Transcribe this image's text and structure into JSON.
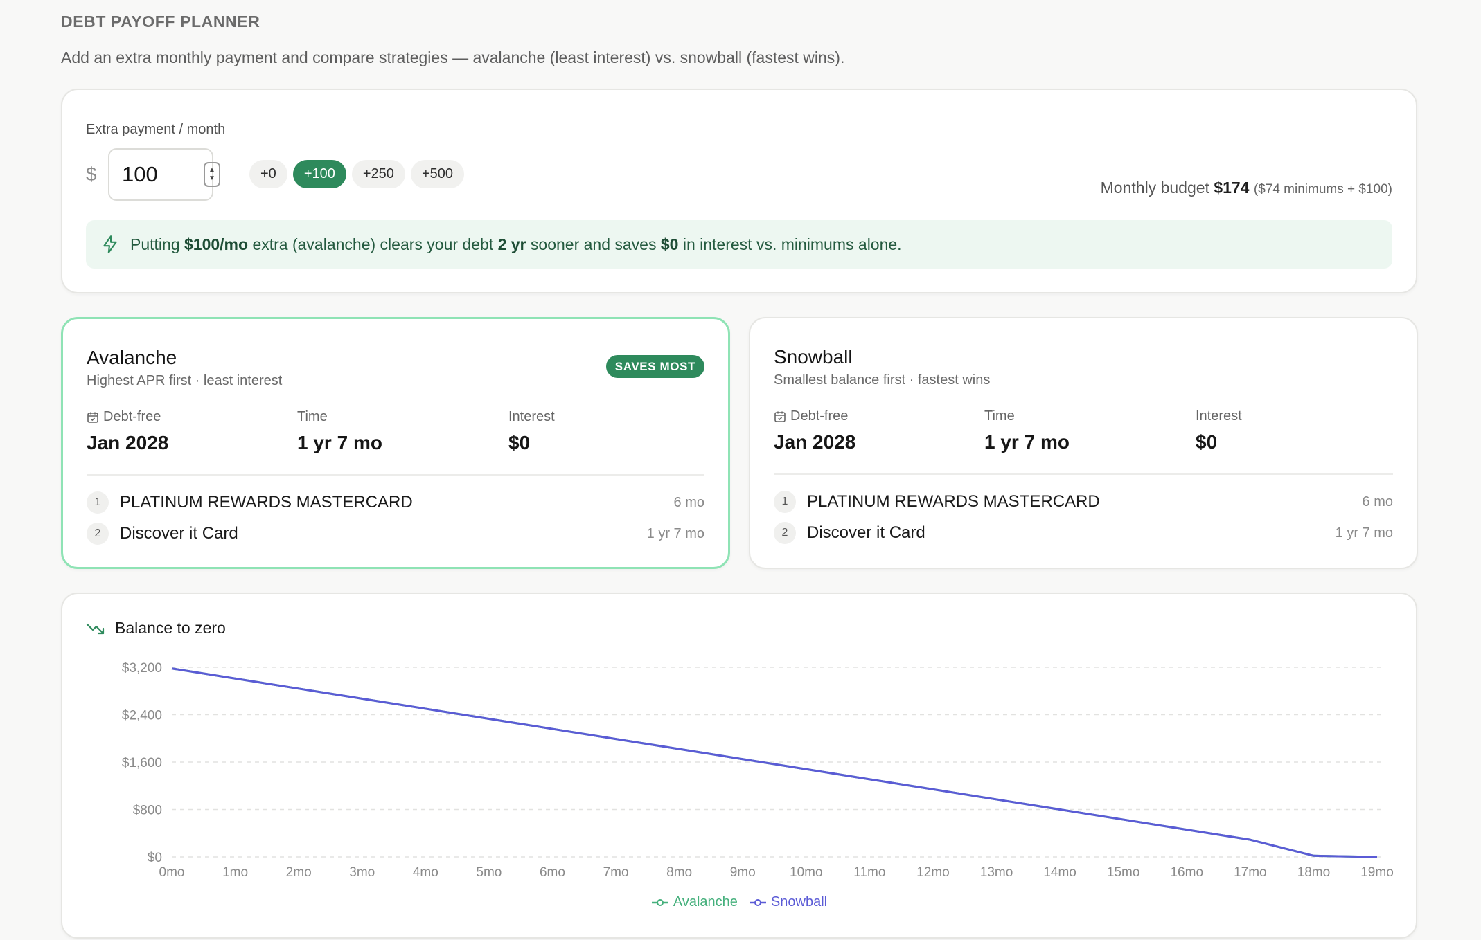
{
  "header": {
    "title": "DEBT PAYOFF PLANNER",
    "subtitle": "Add an extra monthly payment and compare strategies — avalanche (least interest) vs. snowball (fastest wins)."
  },
  "payment": {
    "label": "Extra payment / month",
    "currency": "$",
    "value": "100",
    "chips": [
      "+0",
      "+100",
      "+250",
      "+500"
    ],
    "active_chip": "+100",
    "budget_label": "Monthly budget",
    "budget_value": "$174",
    "budget_detail": "($74 minimums + $100)",
    "banner": {
      "icon": "lightning-icon",
      "t1": "Putting ",
      "b1": "$100/mo",
      "t2": " extra (avalanche) clears your debt ",
      "b2": "2 yr",
      "t3": " sooner and saves ",
      "b3": "$0",
      "t4": " in interest vs. minimums alone."
    }
  },
  "strategies": [
    {
      "name": "Avalanche",
      "desc": "Highest APR first · least interest",
      "badge": "SAVES MOST",
      "debt_free_label": "Debt-free",
      "debt_free": "Jan 2028",
      "time_label": "Time",
      "time": "1 yr 7 mo",
      "interest_label": "Interest",
      "interest": "$0",
      "debts": [
        {
          "n": "1",
          "name": "PLATINUM REWARDS MASTERCARD",
          "time": "6 mo"
        },
        {
          "n": "2",
          "name": "Discover it Card",
          "time": "1 yr 7 mo"
        }
      ]
    },
    {
      "name": "Snowball",
      "desc": "Smallest balance first · fastest wins",
      "debt_free_label": "Debt-free",
      "debt_free": "Jan 2028",
      "time_label": "Time",
      "time": "1 yr 7 mo",
      "interest_label": "Interest",
      "interest": "$0",
      "debts": [
        {
          "n": "1",
          "name": "PLATINUM REWARDS MASTERCARD",
          "time": "6 mo"
        },
        {
          "n": "2",
          "name": "Discover it Card",
          "time": "1 yr 7 mo"
        }
      ]
    }
  ],
  "colors": {
    "accent": "#2e8a5c",
    "avalanche": "#45b07c",
    "snowball": "#5b5bd6"
  },
  "chart_data": {
    "type": "line",
    "title": "Balance to zero",
    "x": [
      "0mo",
      "1mo",
      "2mo",
      "3mo",
      "4mo",
      "5mo",
      "6mo",
      "7mo",
      "8mo",
      "9mo",
      "10mo",
      "11mo",
      "12mo",
      "13mo",
      "14mo",
      "15mo",
      "16mo",
      "17mo",
      "18mo",
      "19mo"
    ],
    "yticks": [
      "$0",
      "$800",
      "$1,600",
      "$2,400",
      "$3,200"
    ],
    "ytick_values": [
      0,
      800,
      1600,
      2400,
      3200
    ],
    "ylim": [
      0,
      3200
    ],
    "grid": true,
    "legend_position": "bottom-center",
    "series": [
      {
        "name": "Avalanche",
        "values": [
          3180,
          3010,
          2840,
          2670,
          2500,
          2330,
          2160,
          1990,
          1820,
          1650,
          1480,
          1310,
          1140,
          970,
          800,
          630,
          460,
          290,
          20,
          0
        ]
      },
      {
        "name": "Snowball",
        "values": [
          3180,
          3010,
          2840,
          2670,
          2500,
          2330,
          2160,
          1990,
          1820,
          1650,
          1480,
          1310,
          1140,
          970,
          800,
          630,
          460,
          290,
          20,
          0
        ]
      }
    ]
  }
}
